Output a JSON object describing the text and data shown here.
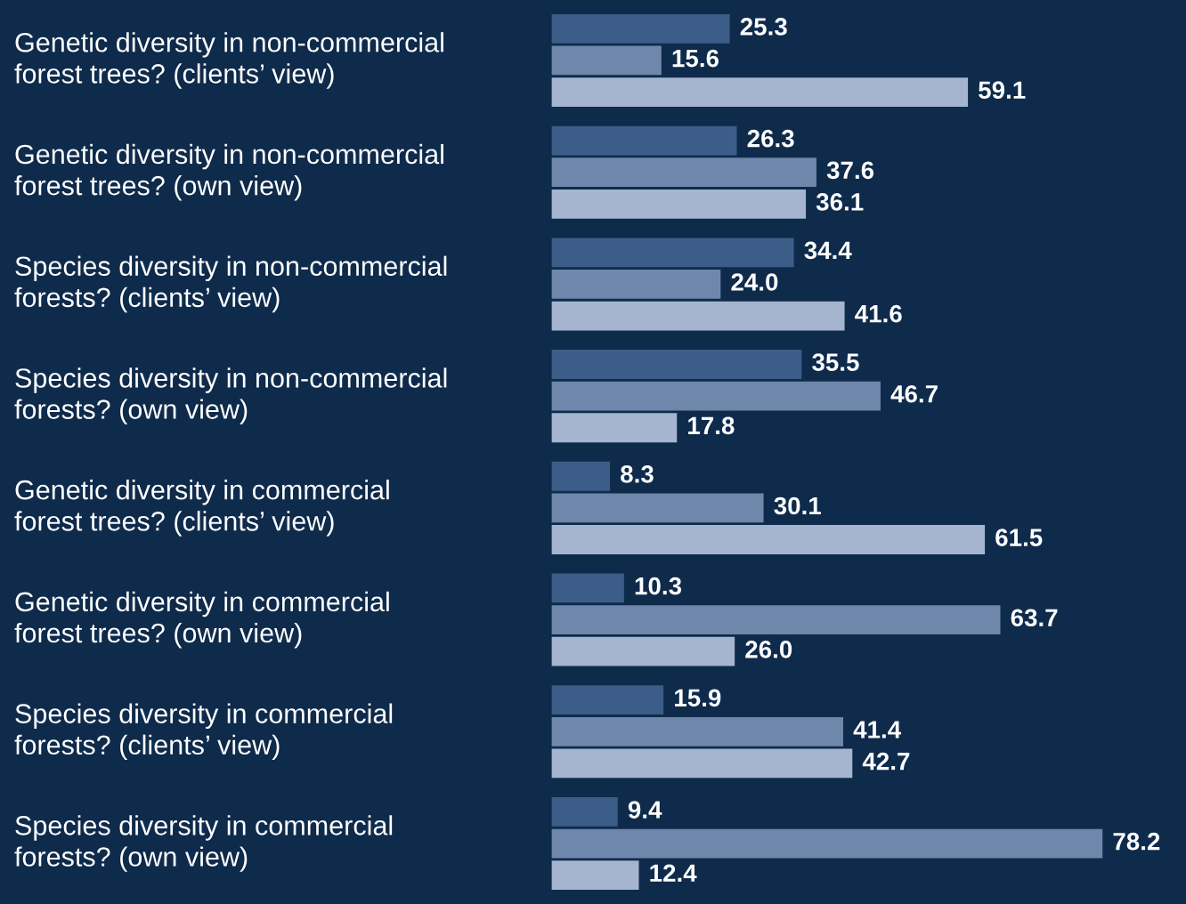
{
  "chart_data": {
    "type": "bar",
    "orientation": "horizontal",
    "categories": [
      "Genetic diversity in non-commercial\nforest trees? (clients’ view)",
      "Genetic diversity in non-commercial\nforest trees? (own view)",
      "Species diversity in non-commercial\nforests? (clients’ view)",
      "Species diversity in non-commercial\nforests? (own view)",
      "Genetic diversity in commercial\nforest trees? (clients’ view)",
      "Genetic diversity in commercial\nforest trees? (own view)",
      "Species diversity in commercial\nforests? (clients’ view)",
      "Species diversity in commercial\nforests? (own view)"
    ],
    "series": [
      {
        "color": "#3b5d88",
        "values": [
          25.3,
          26.3,
          34.4,
          35.5,
          8.3,
          10.3,
          15.9,
          9.4
        ],
        "value_labels": [
          "25.3",
          "26.3",
          "34.4",
          "35.5",
          "8.3",
          "10.3",
          "15.9",
          "9.4"
        ]
      },
      {
        "color": "#6e87ab",
        "values": [
          15.6,
          37.6,
          24.0,
          46.7,
          30.1,
          63.7,
          41.4,
          78.2
        ],
        "value_labels": [
          "15.6",
          "37.6",
          "24.0",
          "46.7",
          "30.1",
          "63.7",
          "41.4",
          "78.2"
        ]
      },
      {
        "color": "#a5b5cf",
        "values": [
          59.1,
          36.1,
          41.6,
          17.8,
          61.5,
          26.0,
          42.7,
          12.4
        ],
        "value_labels": [
          "59.1",
          "36.1",
          "41.6",
          "17.8",
          "61.5",
          "26.0",
          "42.7",
          "12.4"
        ]
      }
    ]
  }
}
